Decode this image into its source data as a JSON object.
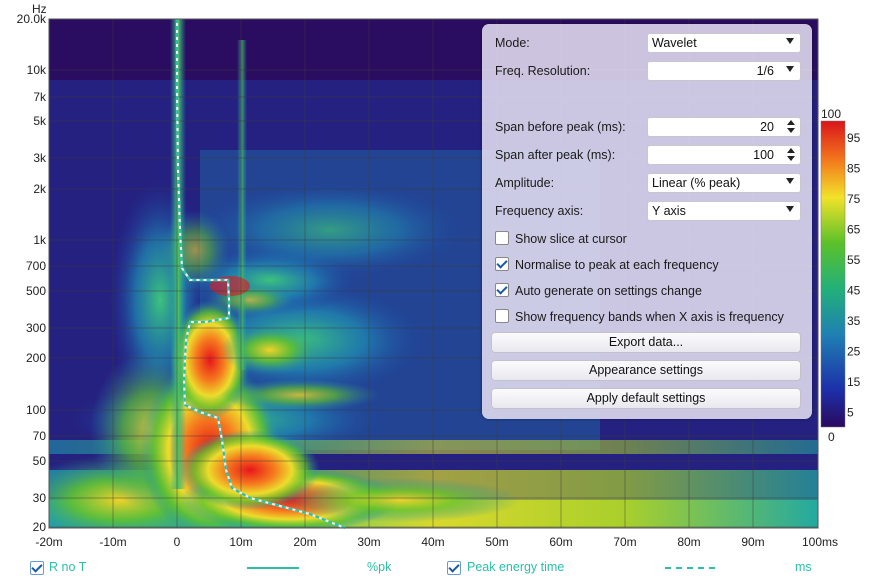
{
  "plot": {
    "y_unit": "Hz",
    "y_ticks": [
      "20.0k",
      "10k",
      "7k",
      "5k",
      "3k",
      "2k",
      "1k",
      "700",
      "500",
      "300",
      "200",
      "100",
      "70",
      "50",
      "30",
      "20"
    ],
    "x_ticks": [
      "-20m",
      "-10m",
      "0",
      "10m",
      "20m",
      "30m",
      "40m",
      "50m",
      "60m",
      "70m",
      "80m",
      "90m",
      "100ms"
    ]
  },
  "colorbar": {
    "top": "100",
    "bottom": "0",
    "labels": [
      "95",
      "85",
      "75",
      "65",
      "55",
      "45",
      "35",
      "25",
      "15",
      "5"
    ]
  },
  "settings": {
    "mode_label": "Mode:",
    "mode_value": "Wavelet",
    "freq_res_label": "Freq. Resolution:",
    "freq_res_value": "1/6",
    "span_before_label": "Span before peak (ms):",
    "span_before_value": "20",
    "span_after_label": "Span after peak (ms):",
    "span_after_value": "100",
    "amplitude_label": "Amplitude:",
    "amplitude_value": "Linear (% peak)",
    "freq_axis_label": "Frequency axis:",
    "freq_axis_value": "Y axis",
    "cb_slice_label": "Show slice at cursor",
    "cb_slice_checked": false,
    "cb_normalise_label": "Normalise to peak at each frequency",
    "cb_normalise_checked": true,
    "cb_autogen_label": "Auto generate on settings change",
    "cb_autogen_checked": true,
    "cb_bands_label": "Show frequency bands when X axis is frequency",
    "cb_bands_checked": false,
    "export_label": "Export data...",
    "appearance_label": "Appearance settings",
    "defaults_label": "Apply default settings"
  },
  "legend": {
    "trace1_name": "R no T",
    "trace1_unit": "%pk",
    "trace1_color": "#2bbfa8",
    "trace2_name": "Peak energy time",
    "trace2_unit": "ms",
    "trace2_color": "#2bbfa8"
  }
}
